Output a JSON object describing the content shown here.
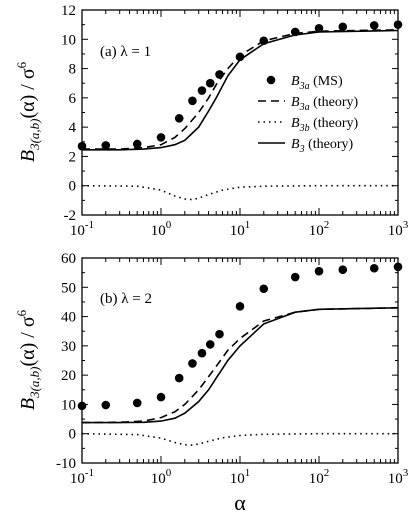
{
  "y_label_main": "B",
  "y_label_sub": "3(a,b)",
  "y_label_rest": "(α) / σ",
  "y_label_sup": "6",
  "x_label": "α",
  "legend": [
    {
      "key": "ms",
      "main": "B",
      "sub": "3a",
      "suffix": " (MS)",
      "style": "points"
    },
    {
      "key": "ta",
      "main": "B",
      "sub": "3a",
      "suffix": " (theory)",
      "style": "dashed"
    },
    {
      "key": "tb",
      "main": "B",
      "sub": "3b",
      "suffix": " (theory)",
      "style": "dotted"
    },
    {
      "key": "t3",
      "main": "B",
      "sub": "3",
      "suffix": " (theory)",
      "style": "solid"
    }
  ],
  "chart_data": [
    {
      "type": "line",
      "panel_label": "(a)  λ = 1",
      "xscale": "log",
      "xlim": [
        0.1,
        1000
      ],
      "ylim": [
        -2,
        12
      ],
      "yticks": [
        -2,
        0,
        2,
        4,
        6,
        8,
        10,
        12
      ],
      "xticks": [
        {
          "value": 0.1,
          "base": "10",
          "exp": "-1"
        },
        {
          "value": 1,
          "base": "10",
          "exp": "0"
        },
        {
          "value": 10,
          "base": "10",
          "exp": "1"
        },
        {
          "value": 100,
          "base": "10",
          "exp": "2"
        },
        {
          "value": 1000,
          "base": "10",
          "exp": "3"
        }
      ],
      "grid": false,
      "legend_position": "right-middle",
      "series": [
        {
          "name": "B3a (MS)",
          "style": "points",
          "x": [
            0.1,
            0.2,
            0.5,
            1,
            1.7,
            2.5,
            3.3,
            4.2,
            5.5,
            10,
            20,
            50,
            100,
            200,
            500,
            1000
          ],
          "y": [
            2.7,
            2.75,
            2.85,
            3.3,
            4.6,
            5.8,
            6.5,
            7.0,
            7.6,
            8.8,
            9.9,
            10.5,
            10.75,
            10.85,
            10.95,
            11.0
          ]
        },
        {
          "name": "B3a (theory)",
          "style": "dashed",
          "x": [
            0.1,
            0.3,
            0.6,
            1,
            1.5,
            2,
            3,
            4,
            5,
            7,
            10,
            20,
            50,
            100,
            1000
          ],
          "y": [
            2.5,
            2.5,
            2.6,
            2.8,
            3.3,
            3.9,
            5.0,
            6.0,
            6.9,
            8.0,
            8.9,
            9.9,
            10.4,
            10.55,
            10.65
          ]
        },
        {
          "name": "B3b (theory)",
          "style": "dotted",
          "x": [
            0.1,
            0.5,
            1,
            1.5,
            2,
            2.5,
            3,
            4,
            6,
            10,
            20,
            100,
            1000
          ],
          "y": [
            0,
            -0.03,
            -0.3,
            -0.7,
            -0.9,
            -0.95,
            -0.85,
            -0.6,
            -0.3,
            -0.1,
            -0.03,
            0,
            0
          ]
        },
        {
          "name": "B3 (theory)",
          "style": "solid",
          "x": [
            0.1,
            0.3,
            0.6,
            1,
            1.5,
            2,
            3,
            4,
            5,
            7,
            10,
            20,
            50,
            100,
            1000
          ],
          "y": [
            2.45,
            2.45,
            2.5,
            2.6,
            2.8,
            3.1,
            4.0,
            5.1,
            6.0,
            7.5,
            8.6,
            9.7,
            10.3,
            10.5,
            10.6
          ]
        }
      ]
    },
    {
      "type": "line",
      "panel_label": "(b)  λ = 2",
      "xscale": "log",
      "xlim": [
        0.1,
        1000
      ],
      "ylim": [
        -10,
        60
      ],
      "yticks": [
        -10,
        0,
        10,
        20,
        30,
        40,
        50,
        60
      ],
      "xticks": [
        {
          "value": 0.1,
          "base": "10",
          "exp": "-1"
        },
        {
          "value": 1,
          "base": "10",
          "exp": "0"
        },
        {
          "value": 10,
          "base": "10",
          "exp": "1"
        },
        {
          "value": 100,
          "base": "10",
          "exp": "2"
        },
        {
          "value": 1000,
          "base": "10",
          "exp": "3"
        }
      ],
      "grid": false,
      "series": [
        {
          "name": "B3a (MS)",
          "style": "points",
          "x": [
            0.1,
            0.2,
            0.5,
            1,
            1.7,
            2.5,
            3.3,
            4.2,
            5.5,
            10,
            20,
            50,
            100,
            200,
            500,
            1000
          ],
          "y": [
            9.5,
            9.8,
            10.5,
            12.5,
            19.0,
            24.0,
            27.5,
            30.5,
            34.0,
            43.5,
            49.5,
            53.5,
            55.5,
            56.0,
            56.5,
            57.0
          ]
        },
        {
          "name": "B3a (theory)",
          "style": "dashed",
          "x": [
            0.1,
            0.3,
            0.6,
            1,
            1.5,
            2,
            3,
            4,
            5,
            7,
            10,
            20,
            50,
            100,
            1000
          ],
          "y": [
            3.8,
            3.9,
            4.3,
            5.5,
            7.5,
            10.0,
            15.0,
            19.5,
            23.0,
            28.5,
            32.5,
            38.5,
            41.5,
            42.5,
            43.0
          ]
        },
        {
          "name": "B3b (theory)",
          "style": "dotted",
          "x": [
            0.1,
            0.5,
            1,
            1.5,
            2,
            2.5,
            3,
            4,
            6,
            10,
            20,
            100,
            1000
          ],
          "y": [
            0,
            -0.3,
            -1.5,
            -3.0,
            -3.8,
            -3.9,
            -3.5,
            -2.6,
            -1.4,
            -0.6,
            -0.2,
            0,
            0
          ]
        },
        {
          "name": "B3 (theory)",
          "style": "solid",
          "x": [
            0.1,
            0.3,
            0.6,
            1,
            1.5,
            2,
            3,
            4,
            5,
            7,
            10,
            20,
            50,
            100,
            1000
          ],
          "y": [
            3.8,
            3.8,
            3.9,
            4.3,
            5.3,
            7.0,
            11.0,
            15.0,
            19.0,
            25.0,
            30.0,
            37.5,
            41.5,
            42.5,
            43.0
          ]
        }
      ]
    }
  ]
}
